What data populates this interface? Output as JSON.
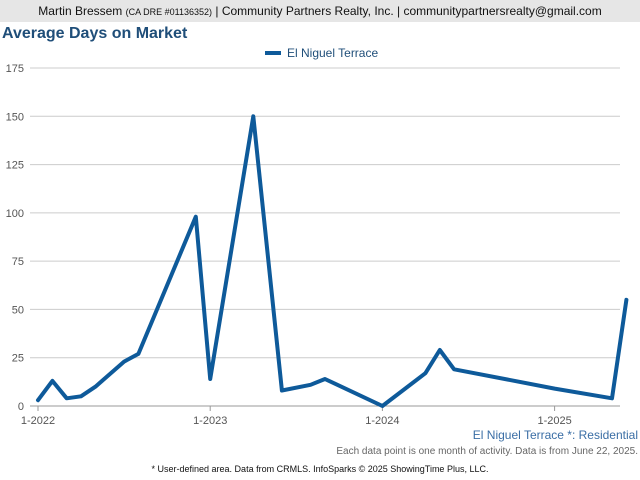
{
  "header": {
    "agent_name": "Martin Bressem",
    "license": "(CA DRE #01136352)",
    "company": "| Community Partners Realty, Inc. |",
    "email": "communitypartnersrealty@gmail.com"
  },
  "notes": {
    "area": "El Niguel Terrace *: Residential",
    "data": "Each data point is one month of activity. Data is from June 22, 2025.",
    "footer": "* User-defined area. Data from CRMLS. InfoSparks © 2025 ShowingTime Plus, LLC."
  },
  "colors": {
    "line": "#0e5a9a",
    "grid": "#cccccc",
    "title": "#1f4e79"
  },
  "chart_data": {
    "type": "line",
    "title": "Average Days on Market",
    "ylim": [
      0,
      175
    ],
    "grid": true,
    "legend_position": "top-center",
    "y_ticks": [
      "0",
      "25",
      "50",
      "75",
      "100",
      "125",
      "150",
      "175"
    ],
    "x_ticks": [
      "1-2022",
      "1-2023",
      "1-2024",
      "1-2025"
    ],
    "series": [
      {
        "name": "El Niguel Terrace",
        "points": [
          {
            "x": "2022-01",
            "y": 3
          },
          {
            "x": "2022-02",
            "y": 13
          },
          {
            "x": "2022-03",
            "y": 4
          },
          {
            "x": "2022-04",
            "y": 5
          },
          {
            "x": "2022-05",
            "y": 10
          },
          {
            "x": "2022-07",
            "y": 23
          },
          {
            "x": "2022-08",
            "y": 27
          },
          {
            "x": "2022-12",
            "y": 98
          },
          {
            "x": "2023-01",
            "y": 14
          },
          {
            "x": "2023-04",
            "y": 150
          },
          {
            "x": "2023-06",
            "y": 8
          },
          {
            "x": "2023-08",
            "y": 11
          },
          {
            "x": "2023-09",
            "y": 14
          },
          {
            "x": "2024-01",
            "y": 0
          },
          {
            "x": "2024-04",
            "y": 17
          },
          {
            "x": "2024-05",
            "y": 29
          },
          {
            "x": "2024-06",
            "y": 19
          },
          {
            "x": "2025-01",
            "y": 9
          },
          {
            "x": "2025-05",
            "y": 4
          },
          {
            "x": "2025-06",
            "y": 55
          }
        ]
      }
    ]
  }
}
